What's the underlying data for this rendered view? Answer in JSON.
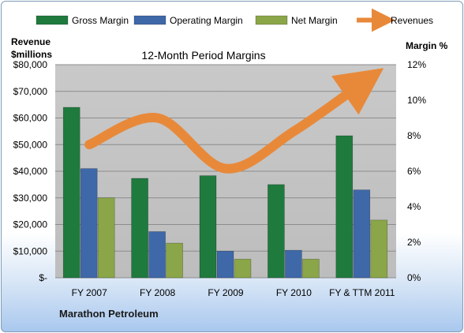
{
  "chart_data": {
    "type": "bar",
    "title": "12-Month Period Margins",
    "left_axis_label": [
      "Revenue",
      "$millions"
    ],
    "right_axis_label": "Margin %",
    "footer_label": "Marathon Petroleum",
    "categories": [
      "FY 2007",
      "FY 2008",
      "FY 2009",
      "FY 2010",
      "FY & TTM 2011"
    ],
    "left_ticks": [
      "$-",
      "$10,000",
      "$20,000",
      "$30,000",
      "$40,000",
      "$50,000",
      "$60,000",
      "$70,000",
      "$80,000"
    ],
    "right_ticks": [
      "0%",
      "2%",
      "4%",
      "6%",
      "8%",
      "10%",
      "12%"
    ],
    "ylim_left": [
      0,
      80000
    ],
    "ylim_right": [
      0,
      12
    ],
    "series": [
      {
        "name": "Gross Margin",
        "axis": "right",
        "kind": "bar",
        "color": "#1f7a3e",
        "values": [
          9.6,
          5.6,
          5.75,
          5.25,
          8.0
        ]
      },
      {
        "name": "Operating Margin",
        "axis": "right",
        "kind": "bar",
        "color": "#3f68a8",
        "values": [
          6.15,
          2.6,
          1.5,
          1.55,
          4.95
        ]
      },
      {
        "name": "Net Margin",
        "axis": "right",
        "kind": "bar",
        "color": "#8aa648",
        "values": [
          4.5,
          1.95,
          1.05,
          1.05,
          3.25
        ]
      },
      {
        "name": "Revenues",
        "axis": "left",
        "kind": "line",
        "color": "#e8893a",
        "values": [
          50000,
          60000,
          41000,
          55000,
          73000
        ]
      }
    ]
  }
}
